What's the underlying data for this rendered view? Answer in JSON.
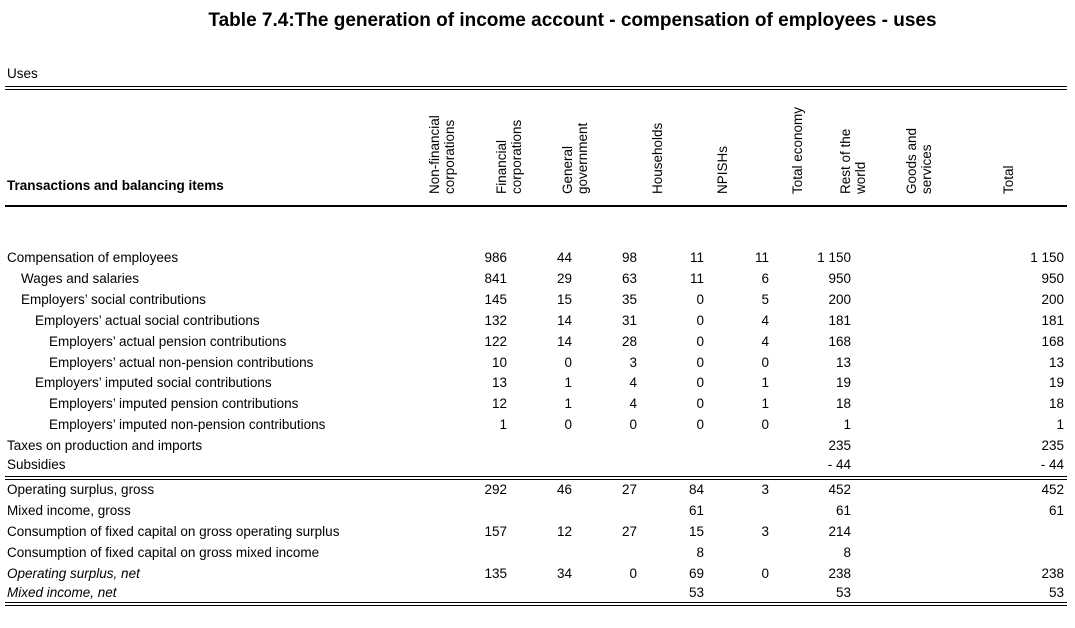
{
  "title": "Table 7.4:The generation of income account - compensation of employees - uses",
  "uses_label": "Uses",
  "transactions_heading": "Transactions and balancing items",
  "columns": [
    {
      "lines": [
        "Non-financial",
        "corporations"
      ]
    },
    {
      "lines": [
        "Financial",
        "corporations"
      ]
    },
    {
      "lines": [
        "General",
        "government"
      ]
    },
    {
      "lines": [
        "Households"
      ]
    },
    {
      "lines": [
        "NPISHs"
      ]
    },
    {
      "lines": [
        "Total economy"
      ]
    },
    {
      "lines": [
        "Rest of the",
        "world"
      ]
    },
    {
      "lines": [
        "Goods and",
        "services"
      ]
    },
    {
      "lines": [
        "Total"
      ]
    }
  ],
  "rows": [
    {
      "label": "Compensation of employees",
      "indent": 0,
      "italic": false,
      "values": [
        "986",
        "44",
        "98",
        "11",
        "11",
        "1 150",
        "",
        "",
        "1 150"
      ]
    },
    {
      "label": "Wages and salaries",
      "indent": 1,
      "italic": false,
      "values": [
        "841",
        "29",
        "63",
        "11",
        "6",
        "950",
        "",
        "",
        "950"
      ]
    },
    {
      "label": "Employers’ social contributions",
      "indent": 1,
      "italic": false,
      "values": [
        "145",
        "15",
        "35",
        "0",
        "5",
        "200",
        "",
        "",
        "200"
      ]
    },
    {
      "label": "Employers’ actual social contributions",
      "indent": 2,
      "italic": false,
      "values": [
        "132",
        "14",
        "31",
        "0",
        "4",
        "181",
        "",
        "",
        "181"
      ]
    },
    {
      "label": "Employers’ actual pension contributions",
      "indent": 3,
      "italic": false,
      "values": [
        "122",
        "14",
        "28",
        "0",
        "4",
        "168",
        "",
        "",
        "168"
      ]
    },
    {
      "label": "Employers’ actual non-pension contributions",
      "indent": 3,
      "italic": false,
      "values": [
        "10",
        "0",
        "3",
        "0",
        "0",
        "13",
        "",
        "",
        "13"
      ]
    },
    {
      "label": "Employers’ imputed social contributions",
      "indent": 2,
      "italic": false,
      "values": [
        "13",
        "1",
        "4",
        "0",
        "1",
        "19",
        "",
        "",
        "19"
      ]
    },
    {
      "label": "Employers’ imputed pension contributions",
      "indent": 3,
      "italic": false,
      "values": [
        "12",
        "1",
        "4",
        "0",
        "1",
        "18",
        "",
        "",
        "18"
      ]
    },
    {
      "label": "Employers’ imputed non-pension contributions",
      "indent": 3,
      "italic": false,
      "values": [
        "1",
        "0",
        "0",
        "0",
        "0",
        "1",
        "",
        "",
        "1"
      ]
    },
    {
      "label": "Taxes on production and imports",
      "indent": 0,
      "italic": false,
      "values": [
        "",
        "",
        "",
        "",
        "",
        "235",
        "",
        "",
        "235"
      ]
    },
    {
      "label": "Subsidies",
      "indent": 0,
      "italic": false,
      "values": [
        "",
        "",
        "",
        "",
        "",
        "- 44",
        "",
        "",
        "- 44"
      ]
    },
    {
      "label": "Operating surplus, gross",
      "indent": 0,
      "italic": false,
      "values": [
        "292",
        "46",
        "27",
        "84",
        "3",
        "452",
        "",
        "",
        "452"
      ]
    },
    {
      "label": "Mixed income, gross",
      "indent": 0,
      "italic": false,
      "values": [
        "",
        "",
        "",
        "61",
        "",
        "61",
        "",
        "",
        "61"
      ]
    },
    {
      "label": "Consumption of fixed capital on gross operating surplus",
      "indent": 0,
      "italic": false,
      "values": [
        "157",
        "12",
        "27",
        "15",
        "3",
        "214",
        "",
        "",
        ""
      ]
    },
    {
      "label": "Consumption of fixed capital on gross mixed income",
      "indent": 0,
      "italic": false,
      "values": [
        "",
        "",
        "",
        "8",
        "",
        "8",
        "",
        "",
        ""
      ]
    },
    {
      "label": "Operating surplus, net",
      "indent": 0,
      "italic": true,
      "values": [
        "135",
        "34",
        "0",
        "69",
        "0",
        "238",
        "",
        "",
        "238"
      ]
    },
    {
      "label": "Mixed income, net",
      "indent": 0,
      "italic": true,
      "values": [
        "",
        "",
        "",
        "53",
        "",
        "53",
        "",
        "",
        "53"
      ]
    }
  ]
}
